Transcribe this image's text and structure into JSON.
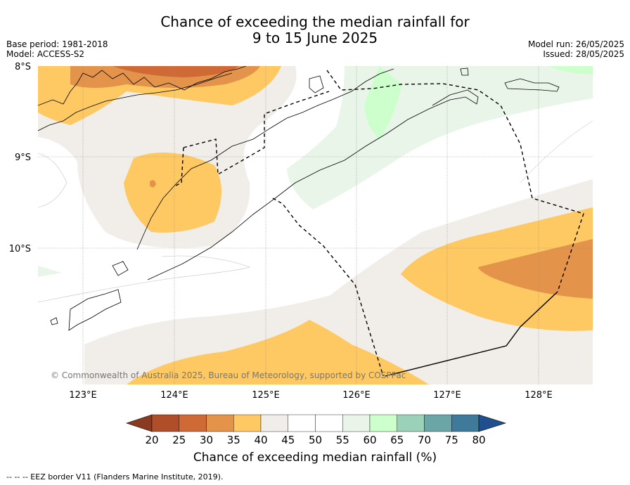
{
  "title_line1": "Chance of exceeding the median rainfall for",
  "title_line2": "9 to 15 June 2025",
  "base_period": "Base period: 1981-2018",
  "model": "Model: ACCESS-S2",
  "model_run": "Model run: 26/05/2025",
  "issued": "Issued: 28/05/2025",
  "copyright": "© Commonwealth of Australia 2025, Bureau of Meteorology, supported by COSPPac",
  "lat_labels": [
    "8°S",
    "9°S",
    "10°S"
  ],
  "lon_labels": [
    "123°E",
    "124°E",
    "125°E",
    "126°E",
    "127°E",
    "128°E"
  ],
  "colorbar": {
    "label": "Chance of exceeding median rainfall (%)",
    "ticks": [
      "20",
      "25",
      "30",
      "35",
      "40",
      "45",
      "50",
      "55",
      "60",
      "65",
      "70",
      "75",
      "80"
    ],
    "colors": [
      "#b04e2a",
      "#cf6a36",
      "#e4944a",
      "#fec962",
      "#f1ede8",
      "#ffffff",
      "#ffffff",
      "#eaf5ea",
      "#ccffcc",
      "#9ad1b8",
      "#6ba5a5",
      "#3f7a9a"
    ],
    "under_color": "#8b3a22",
    "over_color": "#1f4f8c"
  },
  "footnote": "-- -- -- EEZ border V11 (Flanders Marine Institute, 2019)."
}
